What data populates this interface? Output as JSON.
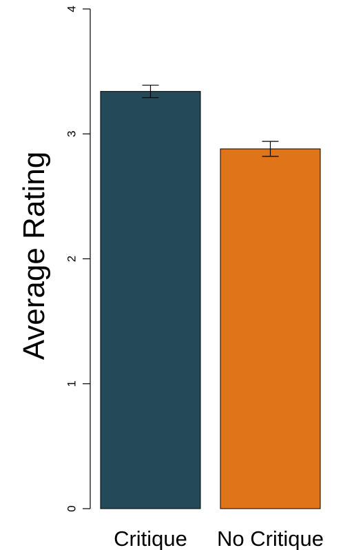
{
  "chart_data": {
    "type": "bar",
    "title": "",
    "xlabel": "",
    "ylabel": "Average Rating",
    "categories": [
      "Critique",
      "No Critique"
    ],
    "values": [
      3.34,
      2.88
    ],
    "error": [
      0.05,
      0.06
    ],
    "colors": [
      "#244a5a",
      "#e07419"
    ],
    "ylim": [
      0,
      4
    ],
    "yticks": [
      "0",
      "1",
      "2",
      "3",
      "4"
    ],
    "grid": false,
    "legend": "none"
  }
}
